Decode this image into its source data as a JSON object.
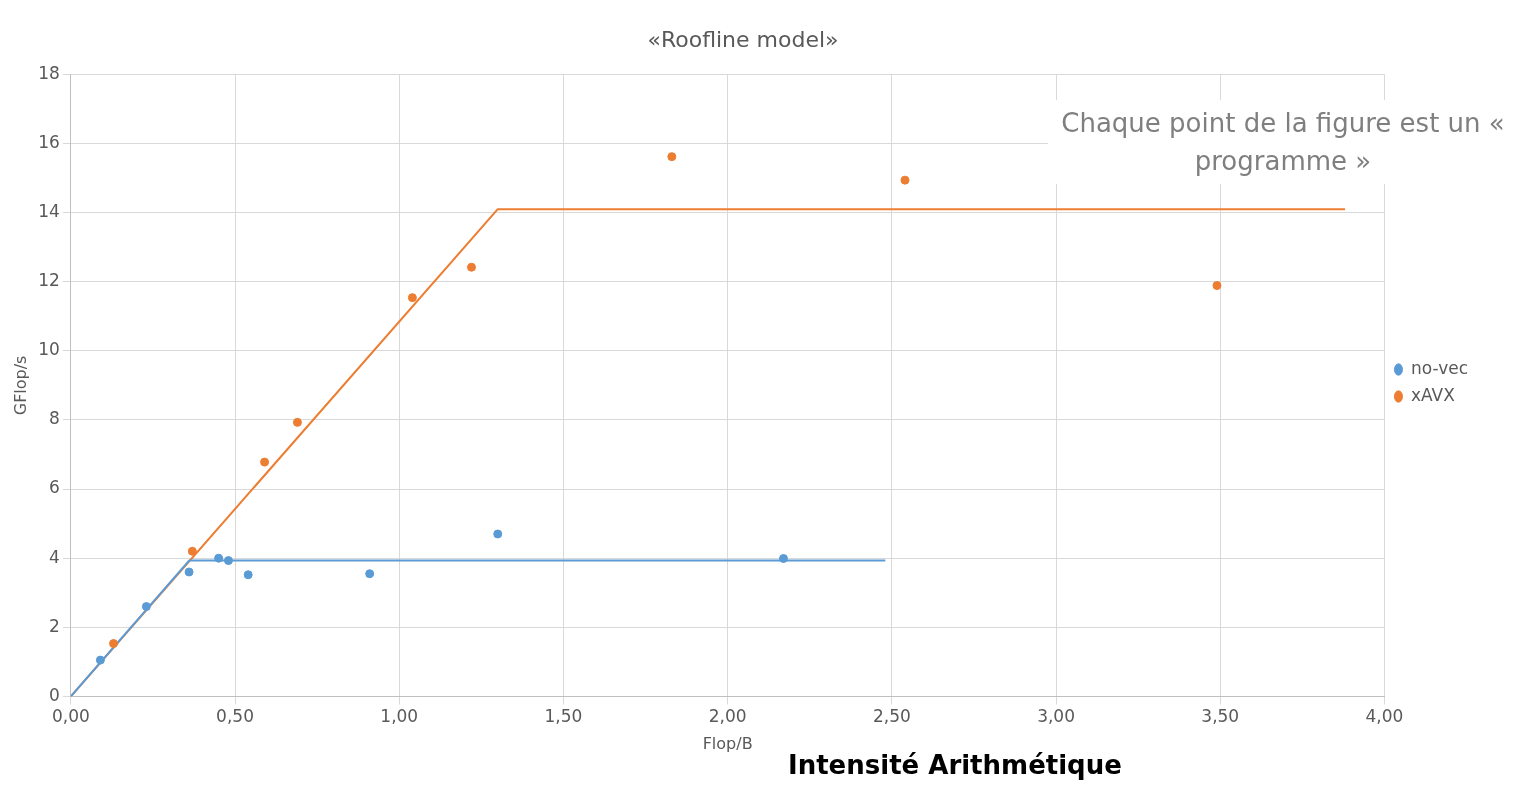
{
  "chart_data": {
    "type": "scatter",
    "title": "«Roofline model»",
    "xlabel": "Flop/B",
    "ylabel": "GFlop/s",
    "annotations": [
      "Chaque point de la figure est un « programme »",
      "Intensité Arithmétique"
    ],
    "xlim": [
      0,
      4
    ],
    "xticks": [
      {
        "value": 0,
        "label": "0,00"
      },
      {
        "value": 0.5,
        "label": "0,50"
      },
      {
        "value": 1,
        "label": "1,00"
      },
      {
        "value": 1.5,
        "label": "1,50"
      },
      {
        "value": 2,
        "label": "2,00"
      },
      {
        "value": 2.5,
        "label": "2,50"
      },
      {
        "value": 3,
        "label": "3,00"
      },
      {
        "value": 3.5,
        "label": "3,50"
      },
      {
        "value": 4,
        "label": "4,00"
      }
    ],
    "ylim": [
      0,
      18
    ],
    "yticks": [
      0,
      2,
      4,
      6,
      8,
      10,
      12,
      14,
      16,
      18
    ],
    "grid": true,
    "legend": "right",
    "marker": "circle",
    "series": [
      {
        "name": "no-vec",
        "color": "#5b9bd5",
        "x": [
          0.09,
          0.23,
          0.36,
          0.45,
          0.48,
          0.54,
          0.91,
          1.3,
          2.17
        ],
        "values": [
          1.05,
          2.6,
          3.6,
          4.0,
          3.93,
          3.52,
          3.55,
          4.7,
          3.99
        ]
      },
      {
        "name": "xAVX",
        "color": "#ed7d31",
        "x": [
          0.13,
          0.37,
          0.59,
          0.69,
          1.04,
          1.22,
          1.83,
          2.54,
          3.49
        ],
        "values": [
          1.53,
          4.2,
          6.78,
          7.93,
          11.54,
          12.42,
          15.62,
          14.94,
          11.89
        ]
      },
      {
        "type": "line",
        "marker": "none",
        "color": "#5b9bd5",
        "x": [
          0,
          0.36,
          2.48
        ],
        "values": [
          0,
          3.93,
          3.93
        ]
      },
      {
        "type": "line",
        "marker": "none",
        "color": "#ed7d31",
        "x": [
          0,
          1.3,
          3.88
        ],
        "values": [
          0,
          14.1,
          14.1
        ]
      }
    ]
  }
}
